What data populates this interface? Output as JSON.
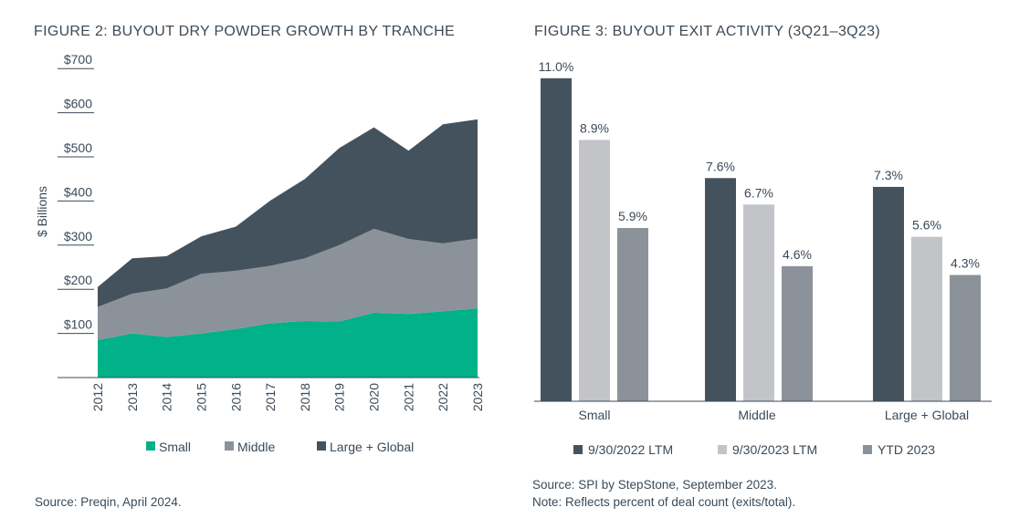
{
  "figure2": {
    "title": "FIGURE 2: BUYOUT DRY POWDER GROWTH BY TRANCHE",
    "source": "Source: Preqin, April 2024."
  },
  "figure3": {
    "title": "FIGURE 3: BUYOUT EXIT ACTIVITY (3Q21–3Q23)",
    "source_line1": "Source: SPI by StepStone, September 2023.",
    "source_line2": "Note: Reflects percent of deal count (exits/total)."
  },
  "chart_data": [
    {
      "type": "area",
      "stacked": true,
      "title": "FIGURE 2: BUYOUT DRY POWDER GROWTH BY TRANCHE",
      "ylabel": "$ Billions",
      "xlabel": "",
      "ylim": [
        0,
        700
      ],
      "y_ticks": [
        {
          "value": 100,
          "label": "$100"
        },
        {
          "value": 200,
          "label": "$200"
        },
        {
          "value": 300,
          "label": "$300"
        },
        {
          "value": 400,
          "label": "$400"
        },
        {
          "value": 500,
          "label": "$500"
        },
        {
          "value": 600,
          "label": "$600"
        },
        {
          "value": 700,
          "label": "$700"
        }
      ],
      "x": [
        "2012",
        "2013",
        "2014",
        "2015",
        "2016",
        "2017",
        "2018",
        "2019",
        "2020",
        "2021",
        "2022",
        "2023"
      ],
      "series": [
        {
          "name": "Small",
          "color": "#00b189",
          "values": [
            85,
            100,
            92,
            100,
            110,
            123,
            128,
            127,
            147,
            144,
            150,
            157
          ]
        },
        {
          "name": "Middle",
          "color": "#8c9299",
          "values": [
            75,
            90,
            110,
            135,
            132,
            130,
            142,
            173,
            190,
            170,
            154,
            158
          ]
        },
        {
          "name": "Large + Global",
          "color": "#44525e",
          "values": [
            45,
            80,
            73,
            85,
            100,
            148,
            180,
            220,
            230,
            200,
            270,
            270
          ]
        }
      ],
      "legend_position": "bottom",
      "grid": false
    },
    {
      "type": "bar",
      "title": "FIGURE 3: BUYOUT EXIT ACTIVITY (3Q21–3Q23)",
      "xlabel": "",
      "ylabel": "",
      "ylim": [
        0,
        11.5
      ],
      "categories": [
        "Small",
        "Middle",
        "Large + Global"
      ],
      "series": [
        {
          "name": "9/30/2022 LTM",
          "color": "#44525e",
          "values": [
            11.0,
            7.6,
            7.3
          ],
          "labels": [
            "11.0%",
            "7.6%",
            "7.3%"
          ]
        },
        {
          "name": "9/30/2023 LTM",
          "color": "#c2c4c8",
          "values": [
            8.9,
            6.7,
            5.6
          ],
          "labels": [
            "8.9%",
            "6.7%",
            "5.6%"
          ]
        },
        {
          "name": "YTD 2023",
          "color": "#8c9299",
          "values": [
            5.9,
            4.6,
            4.3
          ],
          "labels": [
            "5.9%",
            "4.6%",
            "4.3%"
          ]
        }
      ],
      "legend_position": "bottom",
      "grid": false
    }
  ]
}
